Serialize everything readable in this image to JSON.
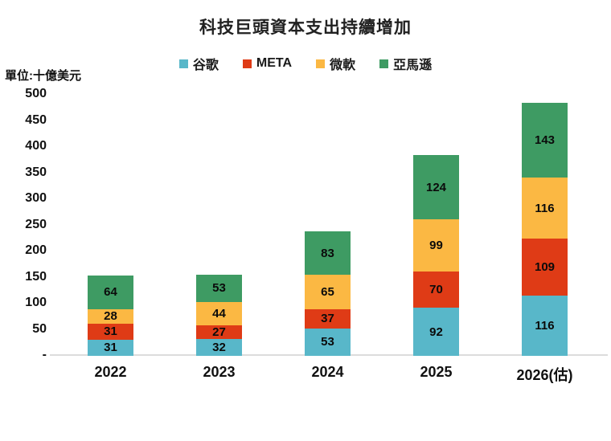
{
  "title": "科技巨頭資本支出持續增加",
  "unit_label": "單位:十億美元",
  "legend": [
    {
      "label": "谷歌",
      "color": "#58B7C9"
    },
    {
      "label": "META",
      "color": "#DF3B16"
    },
    {
      "label": "微軟",
      "color": "#FBB843"
    },
    {
      "label": "亞馬遜",
      "color": "#3E9B63"
    }
  ],
  "y_axis": {
    "ticks": [
      "500",
      "450",
      "400",
      "350",
      "300",
      "250",
      "200",
      "150",
      "100",
      "50",
      "-"
    ],
    "max": 500,
    "min": 0
  },
  "chart_data": {
    "type": "bar",
    "stacked": true,
    "categories": [
      "2022",
      "2023",
      "2024",
      "2025",
      "2026(估)"
    ],
    "series": [
      {
        "name": "谷歌",
        "color": "#58B7C9",
        "values": [
          31,
          32,
          53,
          92,
          116
        ]
      },
      {
        "name": "META",
        "color": "#DF3B16",
        "values": [
          31,
          27,
          37,
          70,
          109
        ]
      },
      {
        "name": "微軟",
        "color": "#FBB843",
        "values": [
          28,
          44,
          65,
          99,
          116
        ]
      },
      {
        "name": "亞馬遜",
        "color": "#3E9B63",
        "values": [
          64,
          53,
          83,
          124,
          143
        ]
      }
    ],
    "totals": [
      154,
      156,
      238,
      385,
      484
    ],
    "title": "科技巨頭資本支出持續增加",
    "xlabel": "",
    "ylabel": "單位:十億美元",
    "ylim": [
      0,
      500
    ],
    "grid": false,
    "legend_position": "top",
    "value_labels": "inside-segments"
  }
}
